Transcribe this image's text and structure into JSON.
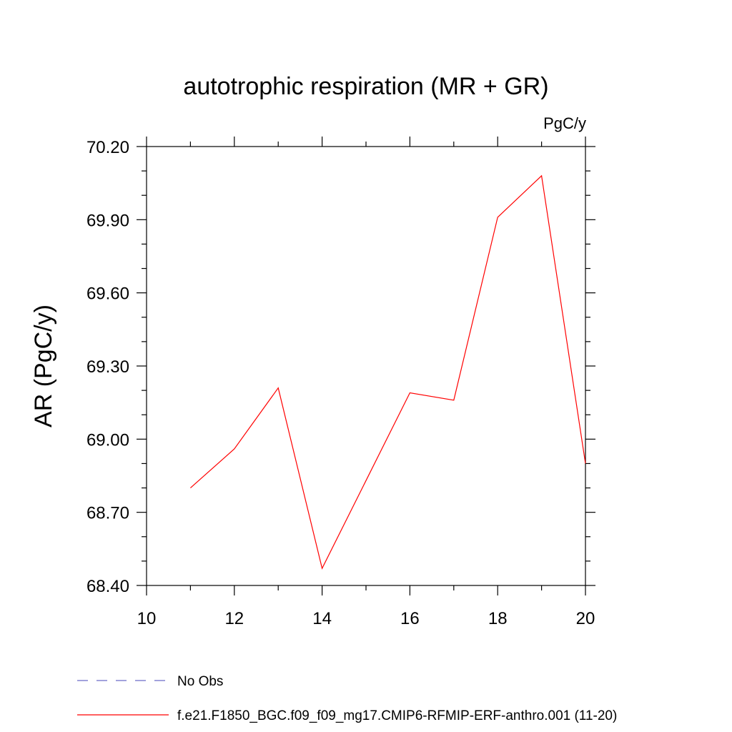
{
  "chart_data": {
    "type": "line",
    "title": "autotrophic respiration (MR + GR)",
    "units_label": "PgC/y",
    "ylabel": "AR  (PgC/y)",
    "xlabel": "",
    "xlim": [
      10,
      20
    ],
    "ylim": [
      68.4,
      70.2
    ],
    "x_ticks": [
      10,
      12,
      14,
      16,
      18,
      20
    ],
    "x_tick_labels": [
      "10",
      "12",
      "14",
      "16",
      "18",
      "20"
    ],
    "y_ticks": [
      68.4,
      68.7,
      69.0,
      69.3,
      69.6,
      69.9,
      70.2
    ],
    "y_tick_labels": [
      "68.40",
      "68.70",
      "69.00",
      "69.30",
      "69.60",
      "69.90",
      "70.20"
    ],
    "grid": false,
    "legend_position": "bottom",
    "series": [
      {
        "name": "f.e21.F1850_BGC.f09_f09_mg17.CMIP6-RFMIP-ERF-anthro.001 (11-20)",
        "color": "#ff0000",
        "style": "solid",
        "x": [
          11,
          12,
          13,
          14,
          15,
          16,
          17,
          18,
          19,
          20
        ],
        "values": [
          68.8,
          68.96,
          69.21,
          68.47,
          68.83,
          69.19,
          69.16,
          69.91,
          70.08,
          68.9
        ]
      }
    ],
    "legend": [
      {
        "label": "No Obs",
        "color": "#6b6bc8",
        "style": "dashed"
      },
      {
        "label": "f.e21.F1850_BGC.f09_f09_mg17.CMIP6-RFMIP-ERF-anthro.001 (11-20)",
        "color": "#ff0000",
        "style": "solid"
      }
    ]
  }
}
